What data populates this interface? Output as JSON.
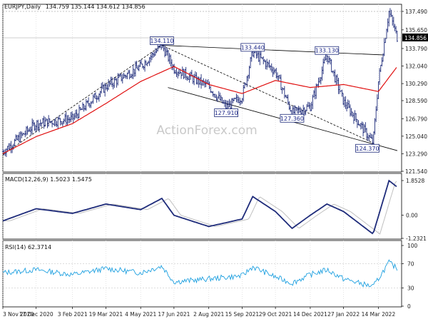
{
  "header": {
    "symbol": "EURJPY,Daily",
    "ohlc": "134.759 135.144 134.612 134.856"
  },
  "watermark": "ActionForex.com",
  "colors": {
    "price": "#1e2b7a",
    "ma": "#e01010",
    "trendline": "#000000",
    "macd": "#1e2b7a",
    "signal": "#c0c0c0",
    "rsi": "#1ea0e0"
  },
  "chart_data": [
    {
      "type": "line",
      "panel": "price",
      "x_ticks": [
        "3 Nov 2020",
        "17 Dec 2020",
        "3 Feb 2021",
        "19 Mar 2021",
        "4 May 2021",
        "17 Jun 2021",
        "2 Aug 2021",
        "15 Sep 2021",
        "29 Oct 2021",
        "14 Dec 2021",
        "27 Jan 2022",
        "14 Mar 2022"
      ],
      "y_ticks": [
        "137.490",
        "135.650",
        "133.790",
        "132.040",
        "130.290",
        "128.590",
        "126.790",
        "125.040",
        "123.290",
        "121.540"
      ],
      "ylim": [
        121.54,
        137.49
      ],
      "current_price": "134.856",
      "price_path": [
        [
          "3 Nov 2020",
          123.5
        ],
        [
          "17 Dec 2020",
          126.3
        ],
        [
          "3 Feb 2021",
          126.8
        ],
        [
          "19 Mar 2021",
          130.0
        ],
        [
          "4 May 2021",
          132.0
        ],
        [
          "1 Jun 2021",
          134.11
        ],
        [
          "17 Jun 2021",
          131.8
        ],
        [
          "2 Aug 2021",
          130.0
        ],
        [
          "25 Aug 2021",
          127.91
        ],
        [
          "15 Sep 2021",
          129.0
        ],
        [
          "29 Sep 2021",
          133.44
        ],
        [
          "29 Oct 2021",
          131.5
        ],
        [
          "20 Nov 2021",
          127.36
        ],
        [
          "14 Dec 2021",
          128.0
        ],
        [
          "5 Jan 2022",
          133.13
        ],
        [
          "27 Jan 2022",
          128.5
        ],
        [
          "7 Mar 2022",
          124.37
        ],
        [
          "14 Mar 2022",
          130.5
        ],
        [
          "28 Mar 2022",
          137.49
        ],
        [
          "8 Apr 2022",
          134.856
        ]
      ],
      "ma_path": [
        [
          "3 Nov 2020",
          123.3
        ],
        [
          "17 Dec 2020",
          125.0
        ],
        [
          "3 Feb 2021",
          126.3
        ],
        [
          "19 Mar 2021",
          128.3
        ],
        [
          "4 May 2021",
          130.5
        ],
        [
          "17 Jun 2021",
          132.0
        ],
        [
          "2 Aug 2021",
          130.2
        ],
        [
          "15 Sep 2021",
          129.3
        ],
        [
          "29 Oct 2021",
          130.6
        ],
        [
          "14 Dec 2021",
          129.9
        ],
        [
          "27 Jan 2022",
          130.2
        ],
        [
          "14 Mar 2022",
          129.5
        ],
        [
          "8 Apr 2022",
          132.0
        ]
      ],
      "labels": [
        {
          "text": "134.110",
          "date": "1 Jun 2021",
          "value": 134.11
        },
        {
          "text": "127.910",
          "date": "25 Aug 2021",
          "value": 127.91
        },
        {
          "text": "133.440",
          "date": "29 Sep 2021",
          "value": 133.44
        },
        {
          "text": "127.360",
          "date": "20 Nov 2021",
          "value": 127.36
        },
        {
          "text": "133.130",
          "date": "5 Jan 2022",
          "value": 133.13
        },
        {
          "text": "124.370",
          "date": "7 Mar 2022",
          "value": 124.37
        }
      ]
    },
    {
      "type": "line",
      "panel": "macd",
      "title": "MACD(12,26,9) 1.5023 1.5475",
      "y_ticks": [
        "1.8528",
        "0.00",
        "-1.2321"
      ],
      "ylim": [
        -1.2321,
        1.8528
      ],
      "macd_path": [
        [
          "3 Nov 2020",
          -0.3
        ],
        [
          "17 Dec 2020",
          0.35
        ],
        [
          "3 Feb 2021",
          0.1
        ],
        [
          "19 Mar 2021",
          0.6
        ],
        [
          "4 May 2021",
          0.3
        ],
        [
          "1 Jun 2021",
          0.9
        ],
        [
          "17 Jun 2021",
          0.0
        ],
        [
          "2 Aug 2021",
          -0.6
        ],
        [
          "15 Sep 2021",
          -0.2
        ],
        [
          "29 Sep 2021",
          1.0
        ],
        [
          "29 Oct 2021",
          0.2
        ],
        [
          "20 Nov 2021",
          -0.7
        ],
        [
          "14 Dec 2021",
          0.0
        ],
        [
          "5 Jan 2022",
          0.6
        ],
        [
          "27 Jan 2022",
          0.2
        ],
        [
          "7 Mar 2022",
          -1.0
        ],
        [
          "28 Mar 2022",
          1.85
        ],
        [
          "8 Apr 2022",
          1.5
        ]
      ]
    },
    {
      "type": "line",
      "panel": "rsi",
      "title": "RSI(14) 62.3714",
      "y_ticks": [
        "100",
        "70",
        "30",
        "0"
      ],
      "ylim": [
        0,
        100
      ],
      "rsi_path": [
        [
          "3 Nov 2020",
          55
        ],
        [
          "17 Dec 2020",
          60
        ],
        [
          "3 Feb 2021",
          52
        ],
        [
          "19 Mar 2021",
          62
        ],
        [
          "4 May 2021",
          55
        ],
        [
          "1 Jun 2021",
          66
        ],
        [
          "17 Jun 2021",
          40
        ],
        [
          "2 Aug 2021",
          45
        ],
        [
          "15 Sep 2021",
          50
        ],
        [
          "29 Sep 2021",
          65
        ],
        [
          "29 Oct 2021",
          48
        ],
        [
          "20 Nov 2021",
          38
        ],
        [
          "14 Dec 2021",
          52
        ],
        [
          "5 Jan 2022",
          60
        ],
        [
          "27 Jan 2022",
          45
        ],
        [
          "7 Mar 2022",
          32
        ],
        [
          "28 Mar 2022",
          72
        ],
        [
          "8 Apr 2022",
          62
        ]
      ]
    }
  ]
}
